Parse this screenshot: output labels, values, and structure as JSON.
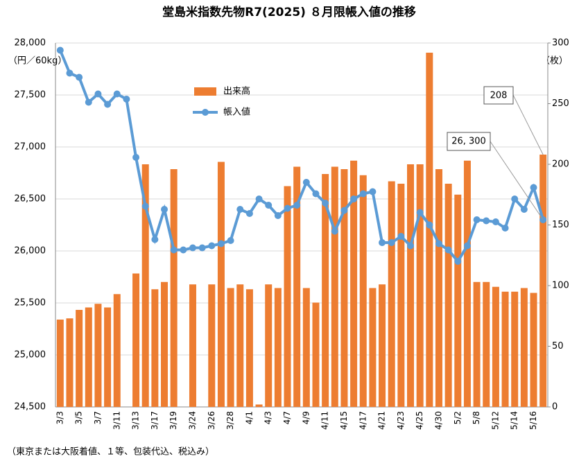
{
  "chart_data": {
    "type": "bar-line",
    "title": "堂島米指数先物R7(2025) ８月限帳入値の推移",
    "y_label": "（円／60kg）",
    "y2_label": "（枚）",
    "footnote": "（東京または大阪着値、１等、包装代込、税込み）",
    "categories": [
      "3/3",
      null,
      "3/5",
      null,
      "3/7",
      null,
      "3/11",
      null,
      "3/13",
      null,
      "3/17",
      null,
      "3/19",
      null,
      "3/24",
      null,
      "3/26",
      null,
      "3/28",
      null,
      "4/1",
      null,
      "4/3",
      null,
      "4/7",
      null,
      "4/9",
      null,
      "4/11",
      null,
      "4/15",
      null,
      "4/17",
      null,
      "4/21",
      null,
      "4/23",
      null,
      "4/25",
      null,
      "4/30",
      null,
      "5/2",
      null,
      "5/8",
      null,
      "5/12",
      null,
      "5/14",
      null,
      "5/16",
      null
    ],
    "series": [
      {
        "name": "出来高",
        "type": "bar",
        "axis": "y2",
        "color": "#ed7d31",
        "values": [
          72,
          73,
          80,
          82,
          85,
          82,
          93,
          null,
          110,
          200,
          97,
          103,
          196,
          null,
          101,
          null,
          101,
          202,
          98,
          101,
          97,
          2,
          101,
          98,
          182,
          198,
          98,
          86,
          192,
          198,
          196,
          203,
          191,
          98,
          101,
          186,
          184,
          200,
          200,
          292,
          196,
          184,
          175,
          203,
          103,
          103,
          99,
          95,
          95,
          98,
          94,
          208
        ]
      },
      {
        "name": "帳入値",
        "type": "line",
        "axis": "y",
        "color": "#5b9bd5",
        "values": [
          27930,
          27710,
          27670,
          27430,
          27510,
          27410,
          27510,
          27460,
          26900,
          26430,
          26110,
          26400,
          26010,
          26010,
          26030,
          26030,
          26050,
          26070,
          26100,
          26400,
          26360,
          26500,
          26440,
          26340,
          26410,
          26440,
          26660,
          26550,
          26460,
          26190,
          26390,
          26500,
          26550,
          26570,
          26080,
          26080,
          26140,
          26050,
          26370,
          26250,
          26070,
          26010,
          25900,
          26050,
          26300,
          26290,
          26280,
          26220,
          26500,
          26400,
          26610,
          26300
        ],
        "value_labels": [
          null,
          null,
          null,
          null,
          null,
          null,
          null,
          null,
          null,
          null,
          null,
          null,
          null,
          null,
          null,
          null,
          null,
          null,
          null,
          null,
          null,
          null,
          null,
          null,
          null,
          null,
          null,
          null,
          null,
          null,
          null,
          null,
          null,
          null,
          null,
          null,
          null,
          null,
          null,
          null,
          null,
          null,
          null,
          null,
          null,
          null,
          null,
          null,
          null,
          null,
          null,
          "26, 300"
        ]
      }
    ],
    "ylim": [
      24500,
      28000
    ],
    "yticks": [
      {
        "value": 24500,
        "label": "24,500"
      },
      {
        "value": 25000,
        "label": "25,000"
      },
      {
        "value": 25500,
        "label": "25,500"
      },
      {
        "value": 26000,
        "label": "26,000"
      },
      {
        "value": 26500,
        "label": "26,500"
      },
      {
        "value": 27000,
        "label": "27,000"
      },
      {
        "value": 27500,
        "label": "27,500"
      },
      {
        "value": 28000,
        "label": "28,000"
      }
    ],
    "y2lim": [
      0,
      300
    ],
    "y2ticks": [
      0,
      50,
      100,
      150,
      200,
      250,
      300
    ],
    "grid": true
  }
}
